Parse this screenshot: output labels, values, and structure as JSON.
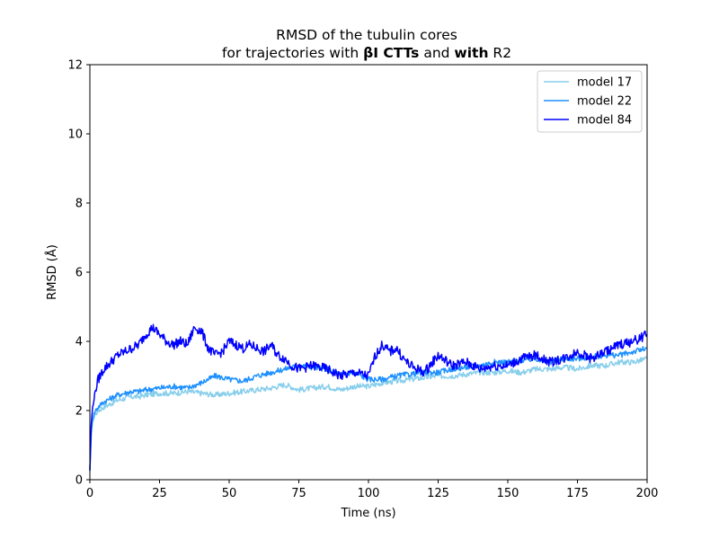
{
  "chart_data": {
    "type": "line",
    "title_line1": "RMSD of the tubulin cores",
    "title_line2_parts": [
      {
        "text": "for trajectories with ",
        "bold": false
      },
      {
        "text": "βI CTTs",
        "bold": true
      },
      {
        "text": " and ",
        "bold": false
      },
      {
        "text": "with",
        "bold": true
      },
      {
        "text": " R2",
        "bold": false
      }
    ],
    "xlabel": "Time (ns)",
    "ylabel": "RMSD (Å)",
    "xlim": [
      0,
      200
    ],
    "ylim": [
      0,
      12
    ],
    "xticks": [
      0,
      25,
      50,
      75,
      100,
      125,
      150,
      175,
      200
    ],
    "yticks": [
      0,
      2,
      4,
      6,
      8,
      10,
      12
    ],
    "grid": false,
    "legend_position": "top-right",
    "series": [
      {
        "name": "model 17",
        "color": "#87ceeb",
        "x": [
          0,
          0.5,
          1,
          2,
          3,
          5,
          7.5,
          10,
          12.5,
          15,
          17.5,
          20,
          25,
          30,
          35,
          40,
          45,
          50,
          55,
          60,
          65,
          70,
          75,
          80,
          85,
          90,
          95,
          100,
          105,
          110,
          115,
          120,
          125,
          130,
          135,
          140,
          145,
          150,
          155,
          160,
          165,
          170,
          175,
          180,
          185,
          190,
          195,
          200
        ],
        "y": [
          0.2,
          1.3,
          1.7,
          1.9,
          2.0,
          2.1,
          2.2,
          2.3,
          2.35,
          2.4,
          2.4,
          2.45,
          2.5,
          2.5,
          2.55,
          2.5,
          2.45,
          2.5,
          2.55,
          2.6,
          2.65,
          2.75,
          2.6,
          2.65,
          2.7,
          2.6,
          2.7,
          2.7,
          2.8,
          2.85,
          2.9,
          2.95,
          3.0,
          3.0,
          3.05,
          3.1,
          3.1,
          3.15,
          3.1,
          3.2,
          3.2,
          3.25,
          3.2,
          3.3,
          3.3,
          3.4,
          3.4,
          3.5
        ]
      },
      {
        "name": "model 22",
        "color": "#1e90ff",
        "x": [
          0,
          0.5,
          1,
          2,
          3,
          5,
          7.5,
          10,
          12.5,
          15,
          17.5,
          20,
          25,
          30,
          35,
          40,
          45,
          50,
          55,
          60,
          65,
          70,
          75,
          80,
          85,
          90,
          95,
          100,
          105,
          110,
          115,
          120,
          125,
          130,
          135,
          140,
          145,
          150,
          155,
          160,
          165,
          170,
          175,
          180,
          185,
          190,
          195,
          200
        ],
        "y": [
          0.3,
          1.4,
          1.8,
          2.0,
          2.1,
          2.25,
          2.35,
          2.45,
          2.5,
          2.55,
          2.55,
          2.6,
          2.65,
          2.7,
          2.65,
          2.8,
          3.0,
          2.9,
          2.85,
          3.0,
          3.1,
          3.2,
          3.3,
          3.25,
          3.2,
          3.05,
          3.1,
          2.9,
          2.9,
          3.0,
          3.05,
          3.1,
          3.1,
          3.2,
          3.25,
          3.3,
          3.4,
          3.4,
          3.45,
          3.5,
          3.4,
          3.5,
          3.5,
          3.55,
          3.6,
          3.6,
          3.7,
          3.8
        ]
      },
      {
        "name": "model 84",
        "color": "#0000ff",
        "x": [
          0,
          0.5,
          1,
          2,
          3,
          5,
          7.5,
          10,
          12.5,
          15,
          17.5,
          20,
          22.5,
          25,
          27.5,
          30,
          32.5,
          35,
          37.5,
          40,
          42.5,
          45,
          47.5,
          50,
          52.5,
          55,
          57.5,
          60,
          62.5,
          65,
          67.5,
          70,
          72.5,
          75,
          80,
          85,
          90,
          95,
          100,
          102.5,
          105,
          107.5,
          110,
          112.5,
          115,
          120,
          125,
          130,
          135,
          140,
          145,
          150,
          155,
          160,
          165,
          170,
          175,
          180,
          185,
          190,
          195,
          200
        ],
        "y": [
          0.3,
          1.6,
          2.1,
          2.6,
          2.9,
          3.2,
          3.4,
          3.6,
          3.7,
          3.8,
          3.9,
          4.2,
          4.4,
          4.2,
          4.0,
          3.9,
          4.0,
          3.9,
          4.4,
          4.3,
          3.8,
          3.6,
          3.7,
          4.0,
          3.9,
          3.8,
          3.9,
          3.8,
          3.7,
          3.9,
          3.6,
          3.5,
          3.3,
          3.2,
          3.3,
          3.2,
          3.0,
          3.1,
          3.0,
          3.6,
          3.9,
          3.7,
          3.8,
          3.5,
          3.3,
          3.1,
          3.6,
          3.3,
          3.4,
          3.2,
          3.3,
          3.3,
          3.5,
          3.6,
          3.4,
          3.5,
          3.7,
          3.5,
          3.7,
          3.9,
          4.0,
          4.2
        ]
      }
    ]
  }
}
